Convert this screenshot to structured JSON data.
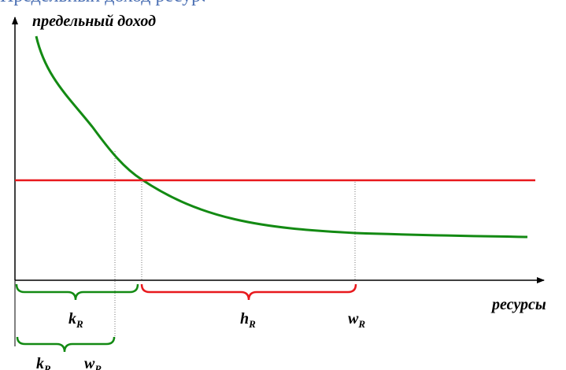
{
  "header_fragment": "Предельный доход ресурса",
  "labels": {
    "y_axis": "предельный доход",
    "x_axis": "ресурсы"
  },
  "brackets": [
    {
      "id": "kR-upper",
      "main": "k",
      "sub": "R"
    },
    {
      "id": "hR",
      "main": "h",
      "sub": "R"
    },
    {
      "id": "wR-upper",
      "main": "w",
      "sub": "R"
    },
    {
      "id": "kR-lower",
      "main": "k",
      "sub": "R"
    },
    {
      "id": "wR-lower",
      "main": "w",
      "sub": "R"
    }
  ],
  "colors": {
    "axis": "#000000",
    "curve": "#138a13",
    "price_line": "#e8191d",
    "guides": "#777777",
    "header": "#4a6fb3"
  }
}
